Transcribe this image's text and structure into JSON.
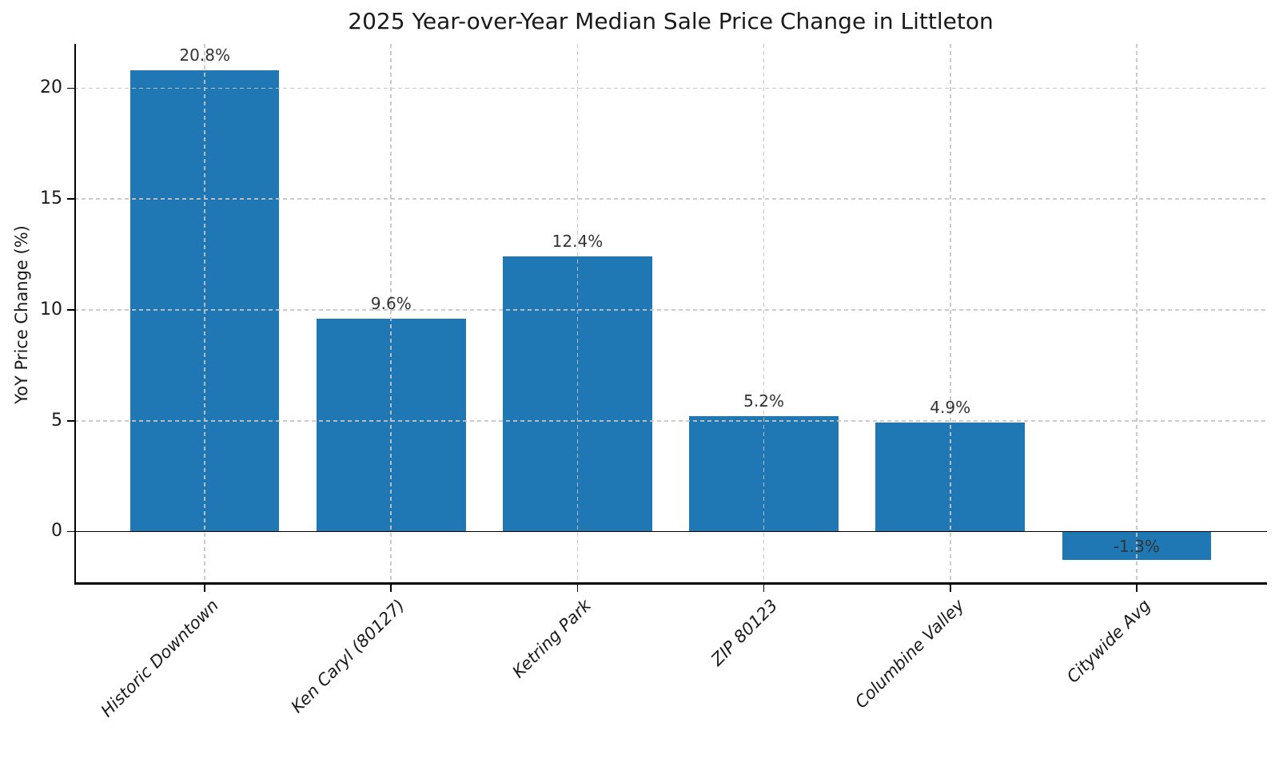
{
  "chart_data": {
    "type": "bar",
    "title": "2025 Year-over-Year Median Sale Price Change in Littleton",
    "ylabel": "YoY Price Change (%)",
    "xlabel": "",
    "categories": [
      "Historic Downtown",
      "Ken Caryl (80127)",
      "Ketring Park",
      "ZIP 80123",
      "Columbine Valley",
      "Citywide Avg"
    ],
    "values": [
      20.8,
      9.6,
      12.4,
      5.2,
      4.9,
      -1.3
    ],
    "bar_labels": [
      "20.8%",
      "9.6%",
      "12.4%",
      "5.2%",
      "4.9%",
      "-1.3%"
    ],
    "ytick_values": [
      0,
      5,
      10,
      15,
      20
    ],
    "ytick_labels": [
      "0",
      "5",
      "10",
      "15",
      "20"
    ],
    "ylim": [
      -2.4,
      22
    ],
    "grid": true,
    "grid_style": "dashed",
    "legend_position": "none",
    "bar_color": "#1f77b4",
    "grid_color": "#c5c5c5",
    "text_color": "#1a1a1a",
    "value_label_color": "#333333",
    "spine_color": "#000000"
  }
}
